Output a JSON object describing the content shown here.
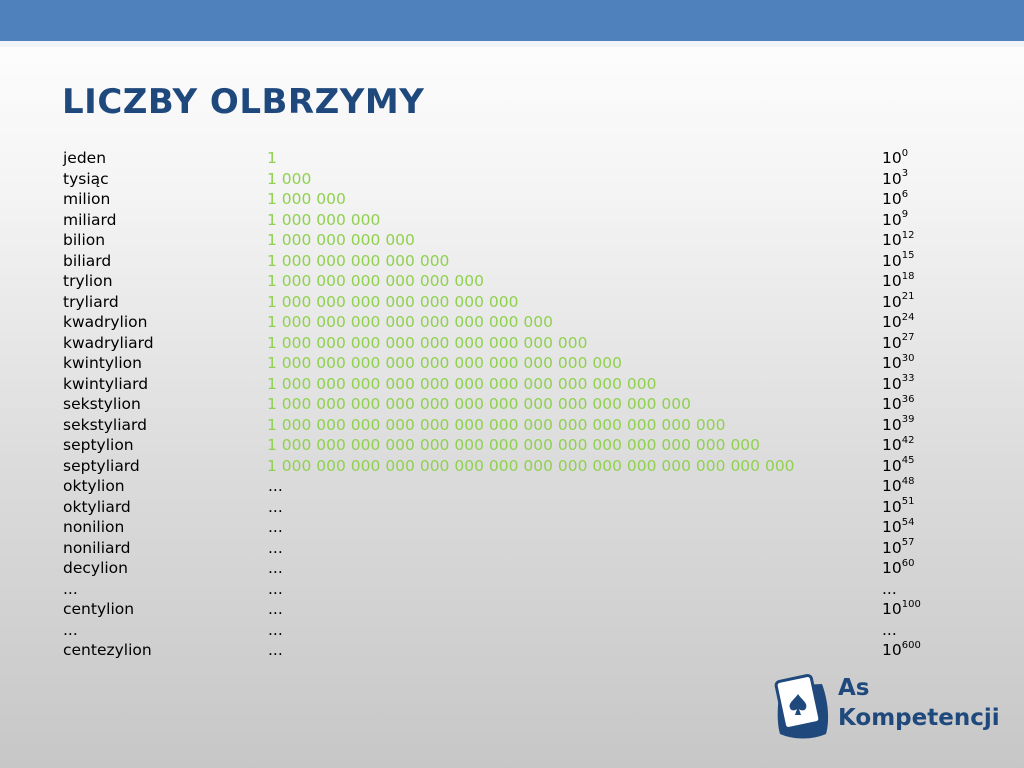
{
  "slide": {
    "title": "LICZBY OLBRZYMY",
    "rows": [
      {
        "name": "jeden",
        "value": "1",
        "base": "10",
        "exp": "0"
      },
      {
        "name": "tysiąc",
        "value": "1 000",
        "base": "10",
        "exp": "3"
      },
      {
        "name": "milion",
        "value": "1 000 000",
        "base": "10",
        "exp": "6"
      },
      {
        "name": "miliard",
        "value": "1 000 000 000",
        "base": "10",
        "exp": "9"
      },
      {
        "name": "bilion",
        "value": "1 000 000 000 000",
        "base": "10",
        "exp": "12"
      },
      {
        "name": "biliard",
        "value": "1 000 000 000 000 000",
        "base": "10",
        "exp": "15"
      },
      {
        "name": "trylion",
        "value": "1 000 000 000 000 000 000",
        "base": "10",
        "exp": "18"
      },
      {
        "name": "tryliard",
        "value": "1 000 000 000 000 000 000 000",
        "base": "10",
        "exp": "21"
      },
      {
        "name": "kwadrylion",
        "value": "1 000 000 000 000 000 000 000 000",
        "base": "10",
        "exp": "24"
      },
      {
        "name": "kwadryliard",
        "value": "1 000 000 000 000 000 000 000 000 000",
        "base": "10",
        "exp": "27"
      },
      {
        "name": "kwintylion",
        "value": "1 000 000 000 000 000 000 000 000 000 000",
        "base": "10",
        "exp": "30"
      },
      {
        "name": "kwintyliard",
        "value": "1 000 000 000 000 000 000 000 000 000 000 000",
        "base": "10",
        "exp": "33"
      },
      {
        "name": "sekstylion",
        "value": "1 000 000 000 000 000 000 000 000 000 000 000 000",
        "base": "10",
        "exp": "36"
      },
      {
        "name": "sekstyliard",
        "value": "1 000 000 000 000 000 000 000 000 000 000 000 000 000",
        "base": "10",
        "exp": "39"
      },
      {
        "name": "septylion",
        "value": "1 000 000 000 000 000 000 000 000 000 000 000 000 000 000",
        "base": "10",
        "exp": "42"
      },
      {
        "name": "septyliard",
        "value": "1 000 000 000 000 000 000 000 000 000 000 000 000 000 000 000",
        "base": "10",
        "exp": "45"
      },
      {
        "name": "oktylion",
        "value": "...",
        "base": "10",
        "exp": "48"
      },
      {
        "name": "oktyliard",
        "value": "...",
        "base": "10",
        "exp": "51"
      },
      {
        "name": "nonilion",
        "value": "...",
        "base": "10",
        "exp": "54"
      },
      {
        "name": "noniliard",
        "value": "...",
        "base": "10",
        "exp": "57"
      },
      {
        "name": "decylion",
        "value": "...",
        "base": "10",
        "exp": "60"
      },
      {
        "name": "...",
        "value": "...",
        "base": "...",
        "exp": ""
      },
      {
        "name": "centylion",
        "value": "...",
        "base": "10",
        "exp": "100"
      },
      {
        "name": "...",
        "value": "...",
        "base": "...",
        "exp": ""
      },
      {
        "name": "centezylion",
        "value": "...",
        "base": "10",
        "exp": "600"
      }
    ]
  },
  "logo": {
    "line1": "As",
    "line2": "Kompetencji",
    "icon": "spade-card-icon",
    "color": "#1f497d"
  },
  "colors": {
    "header_bar": "#4f81bd",
    "title": "#1f497d",
    "number_green": "#8fd14f"
  }
}
